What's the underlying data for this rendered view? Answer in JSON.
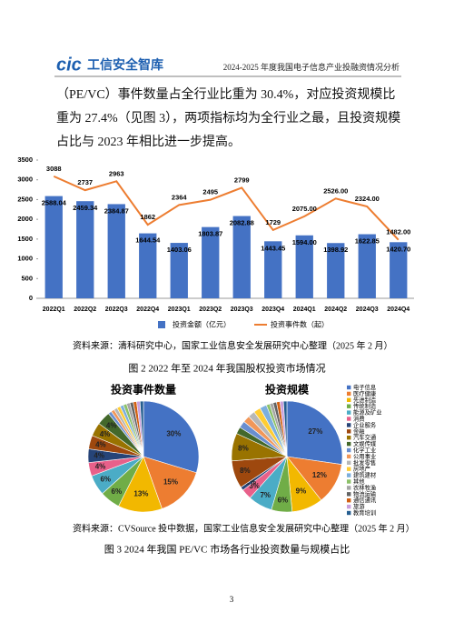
{
  "header": {
    "logo": "cic",
    "brand": "工信安全智库",
    "title": "2024-2025 年度我国电子信息产业投融资情况分析"
  },
  "paragraph": "（PE/VC）事件数量占全行业比重为 30.4%，对应投资规模比重为 27.4%（见图 3），两项指标均为全行业之最，且投资规模占比与 2023 年相比进一步提高。",
  "chart_data": [
    {
      "type": "bar",
      "categories": [
        "2022Q1",
        "2022Q2",
        "2022Q3",
        "2022Q4",
        "2023Q1",
        "2023Q2",
        "2023Q3",
        "2023Q4",
        "2024Q1",
        "2024Q2",
        "2024Q3",
        "2024Q4"
      ],
      "series": [
        {
          "name": "投资金额（亿元）",
          "type": "bar",
          "color": "#4472c4",
          "values": [
            2588.04,
            2459.34,
            2384.87,
            1644.54,
            1403.06,
            1803.87,
            2082.88,
            1443.45,
            1594,
            1398.92,
            1622.85,
            1420.7
          ],
          "value_labels": [
            "2588.04",
            "2459.34",
            "2384.87",
            "1644.54",
            "1403.06",
            "1803.87",
            "2082.88",
            "1443.45",
            "1594.00",
            "1398.92",
            "1622.85",
            "1420.70"
          ]
        },
        {
          "name": "投资事件数（起）",
          "type": "line",
          "color": "#ed7d31",
          "values": [
            3088,
            2737,
            2963,
            1862,
            2364,
            2495,
            2799,
            1729,
            2075,
            2526,
            2324,
            1482
          ],
          "value_labels": [
            "3088",
            "2737",
            "2963",
            "1862",
            "2364",
            "2495",
            "2799",
            "1729",
            "2075.00",
            "2526.00",
            "2324.00",
            "1482.00"
          ]
        }
      ],
      "ylim": [
        0,
        3500
      ],
      "yticks": [
        0,
        500,
        1000,
        1500,
        2000,
        2500,
        3000,
        3500
      ],
      "source": "资料来源：清科研究中心，国家工业信息安全发展研究中心整理（2025 年 2 月）",
      "caption": "图 2 2022 年至 2024 年我国股权投资市场情况"
    },
    {
      "type": "pie",
      "categories": [
        "电子信息",
        "医疗健康",
        "先进制造",
        "传统制造",
        "能源及矿业",
        "消费",
        "企业服务",
        "金融",
        "汽车交通",
        "文娱传媒",
        "化学工业",
        "公用事业",
        "批发零售",
        "房地产",
        "建筑建材",
        "其他",
        "农林牧渔",
        "物流运输",
        "通信通讯",
        "旅游",
        "教育培训"
      ],
      "colors": [
        "#4472c4",
        "#ed7d31",
        "#f2b800",
        "#70ad47",
        "#4bacc6",
        "#e8608a",
        "#264478",
        "#9e480e",
        "#997300",
        "#43682b",
        "#698ed0",
        "#f1975a",
        "#b7b7b7",
        "#ffcd33",
        "#7cafdd",
        "#8cc168",
        "#a5a5a5",
        "#636363",
        "#d26012",
        "#c9a0dc",
        "#255e91"
      ],
      "series": [
        {
          "name": "投资事件数量",
          "values": [
            30,
            15,
            13,
            6,
            6,
            4,
            4,
            4,
            4,
            4,
            1,
            1,
            1,
            1,
            1,
            1,
            1,
            1,
            1,
            1,
            1
          ],
          "value_labels": [
            "30%",
            "15%",
            "13%",
            "6%",
            "6%",
            "4%",
            "4%",
            "4%",
            "4%",
            "4%",
            null,
            null,
            null,
            null,
            null,
            null,
            null,
            null,
            null,
            null,
            null
          ]
        },
        {
          "name": "投资规模",
          "values": [
            27,
            12,
            9,
            6,
            7,
            3,
            1,
            8,
            8,
            2,
            2,
            2,
            2,
            2,
            2,
            1,
            1,
            1,
            1,
            1,
            1
          ],
          "value_labels": [
            "27%",
            "12%",
            "9%",
            "6%",
            "7%",
            "3%",
            "1%",
            "8%",
            "8%",
            null,
            null,
            null,
            null,
            null,
            null,
            null,
            null,
            null,
            null,
            null,
            null
          ]
        }
      ],
      "source": "资料来源：CVSource 投中数据，国家工业信息安全发展研究中心整理（2025 年 2 月）",
      "caption": "图 3 2024 年我国 PE/VC 市场各行业投资数量与规模占比"
    }
  ],
  "page_number": "3"
}
